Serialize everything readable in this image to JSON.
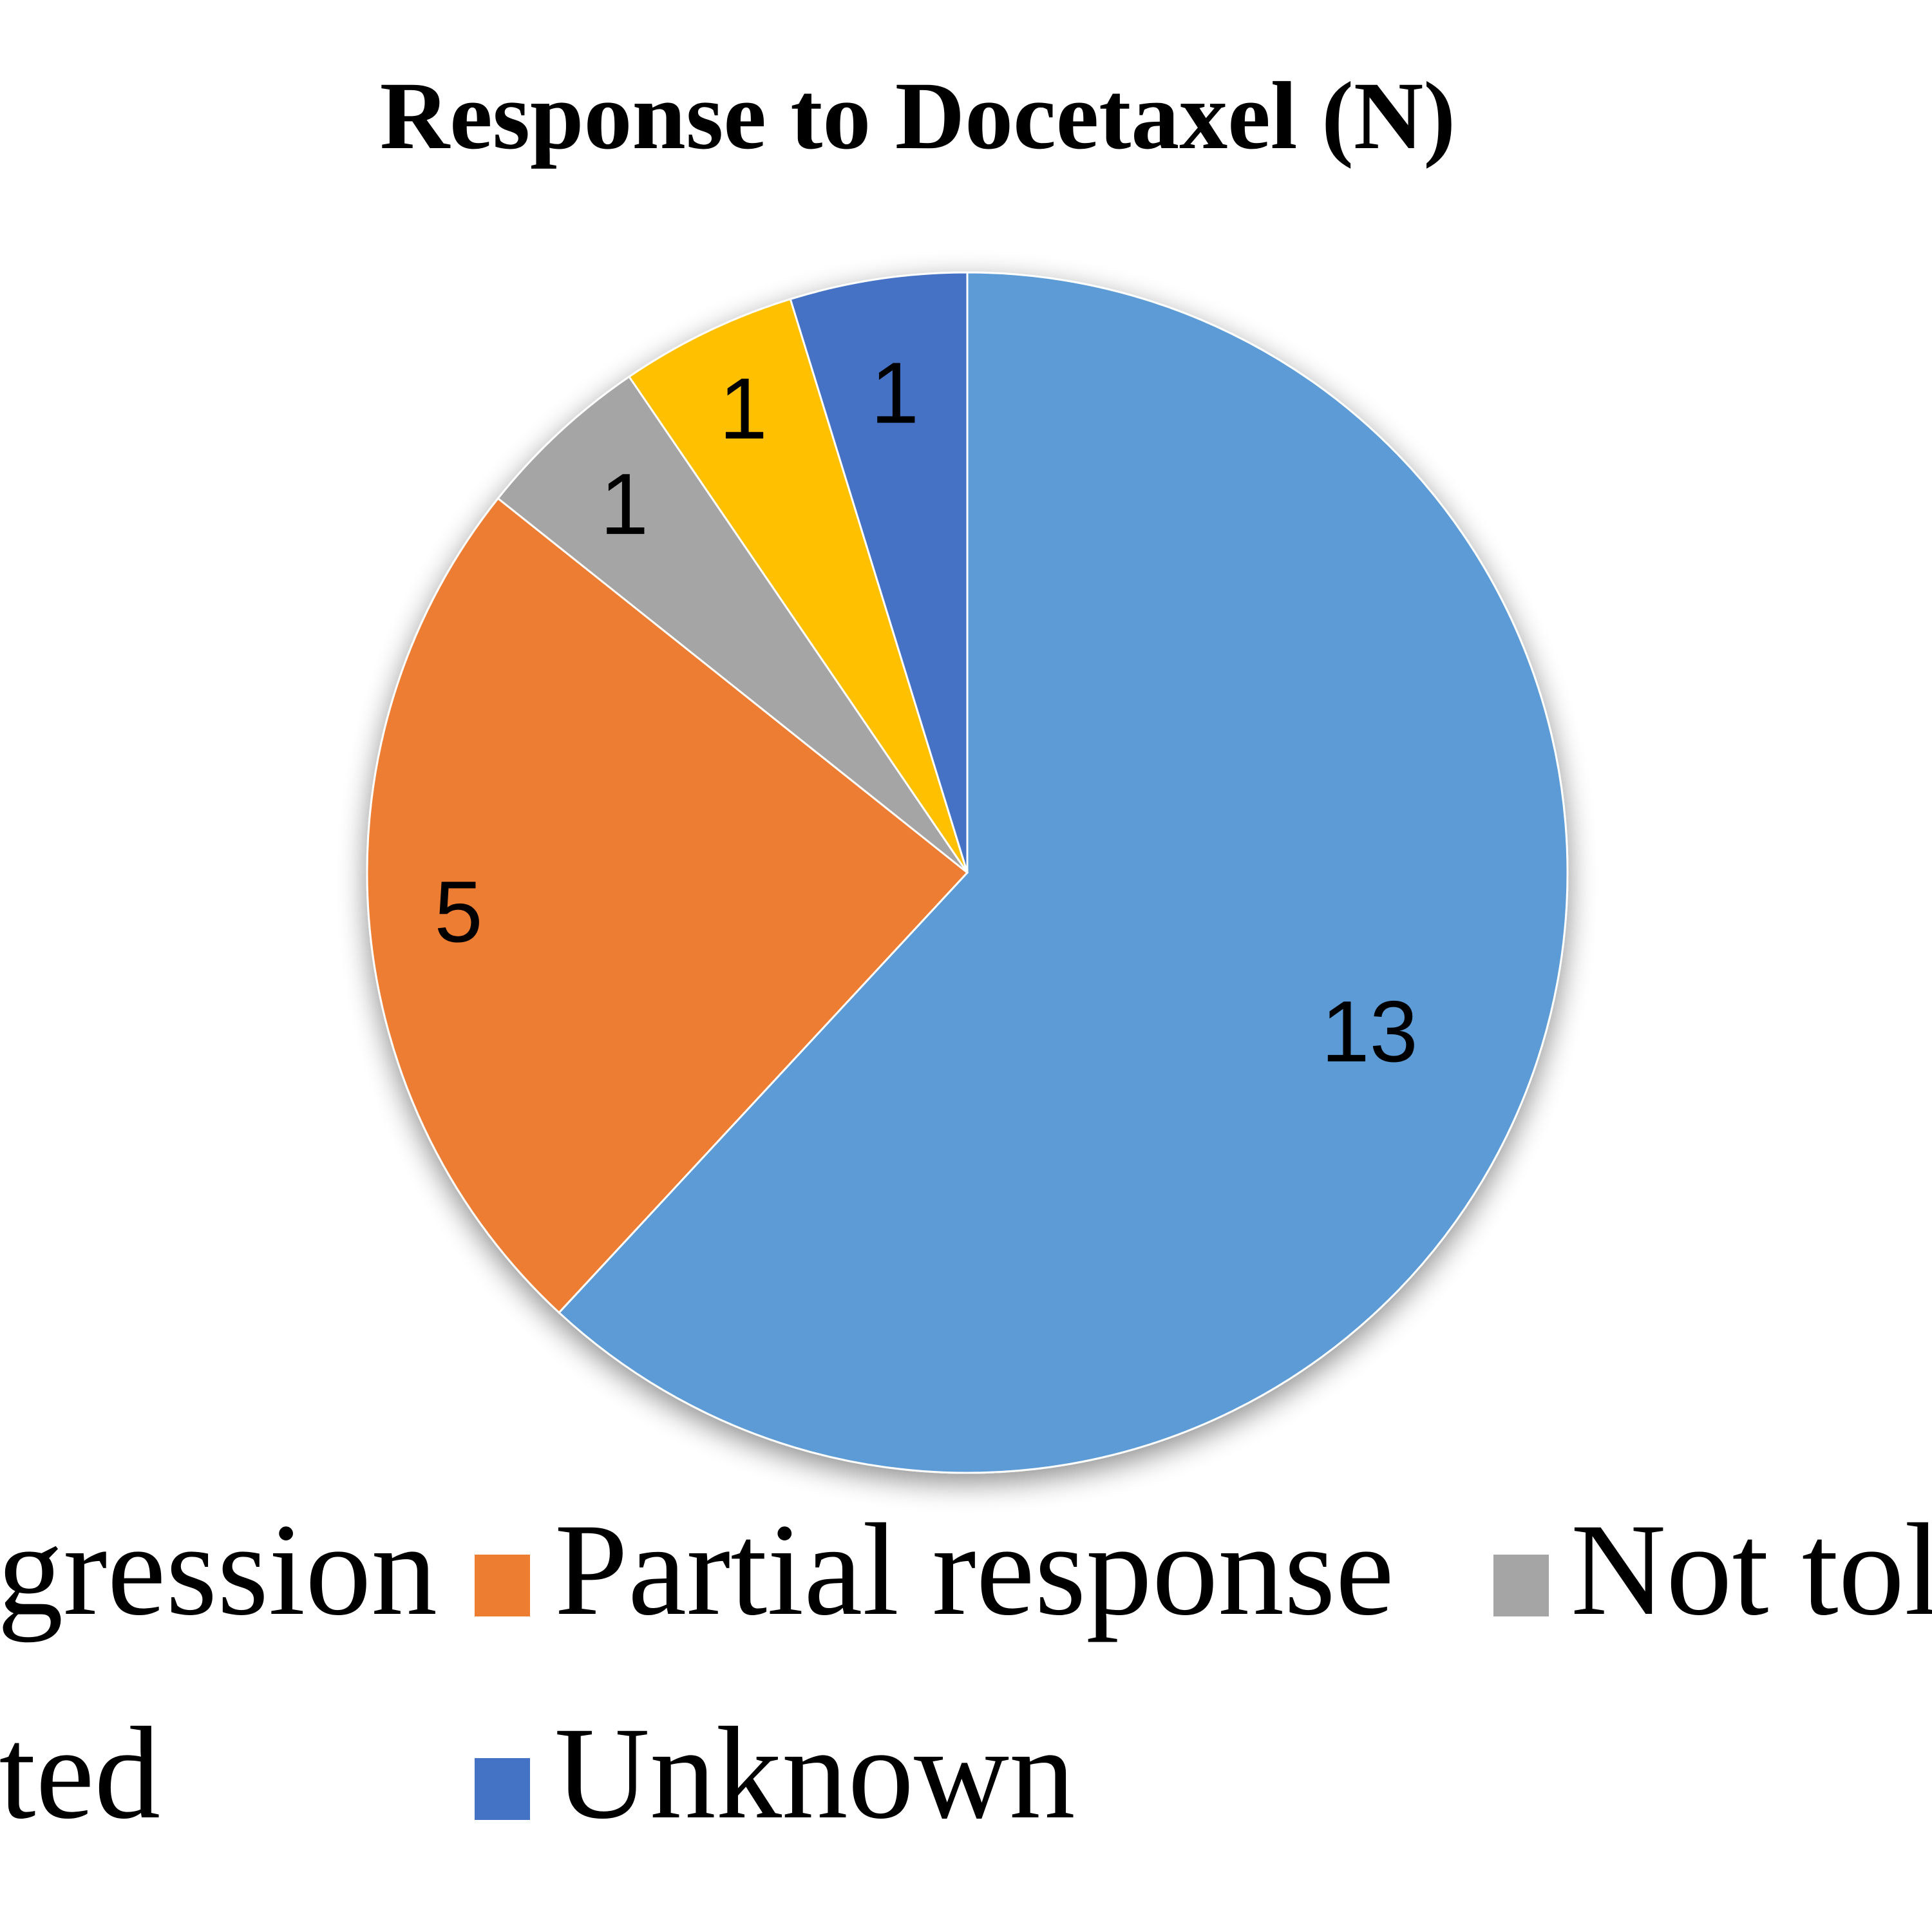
{
  "chart_data": {
    "type": "pie",
    "title": "Response to Docetaxel (N)",
    "start": "12 o'clock, clockwise",
    "slices": [
      {
        "legend_text": "rogression",
        "value": 13,
        "color": "#5B9BD5"
      },
      {
        "legend_text": "Partial response",
        "value": 5,
        "color": "#ED7D31"
      },
      {
        "legend_text": "Not tole",
        "value": 1,
        "color": "#A5A5A5"
      },
      {
        "legend_text": "ated",
        "value": 1,
        "color": "#FFC000"
      },
      {
        "legend_text": "Unknown",
        "value": 1,
        "color": "#4472C4"
      }
    ],
    "legend_placement": "bottom"
  }
}
